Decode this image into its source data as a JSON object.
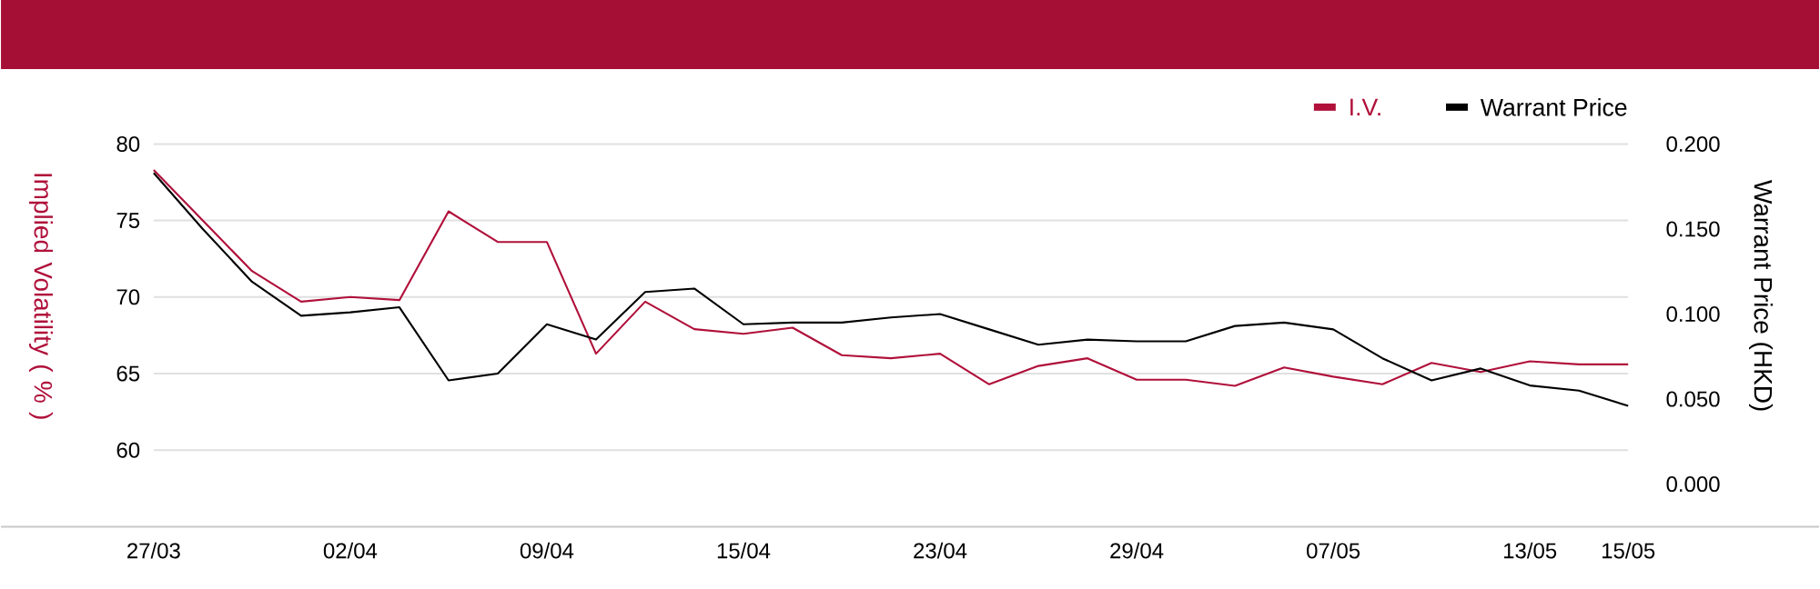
{
  "chart_data": {
    "type": "line",
    "ylabel": "Implied Volatility ( % )",
    "y2label": "Warrant Price (HKD)",
    "categories": [
      "27/03",
      null,
      null,
      null,
      "02/04",
      null,
      null,
      null,
      "09/04",
      null,
      null,
      null,
      "15/04",
      null,
      null,
      null,
      "23/04",
      null,
      null,
      null,
      "29/04",
      null,
      null,
      null,
      "07/05",
      null,
      null,
      null,
      "13/05",
      null,
      "15/05"
    ],
    "ylim": [
      55,
      80
    ],
    "yticks": [
      60,
      65,
      70,
      75,
      80
    ],
    "y2lim": [
      -0.025,
      0.2
    ],
    "y2ticks": [
      {
        "value": 0,
        "label": "0.000"
      },
      {
        "value": 0.05,
        "label": "0.050"
      },
      {
        "value": 0.1,
        "label": "0.100"
      },
      {
        "value": 0.15,
        "label": "0.150"
      },
      {
        "value": 0.2,
        "label": "0.200"
      }
    ],
    "grid": "y",
    "legend": "top right",
    "series": [
      {
        "name": "I.V.",
        "color": "#b0103a",
        "values": [
          78.3,
          75.0,
          71.7,
          69.7,
          70.0,
          69.8,
          75.6,
          73.6,
          73.6,
          66.3,
          69.7,
          67.9,
          67.6,
          68.0,
          66.2,
          66.0,
          66.3,
          64.3,
          65.5,
          66.0,
          64.6,
          64.6,
          64.2,
          65.4,
          64.8,
          64.3,
          65.7,
          65.1,
          65.8,
          65.6,
          65.6
        ]
      },
      {
        "name": "Warrant Price",
        "color": "#000000",
        "axis": "y2",
        "values": [
          0.183,
          0.15,
          0.119,
          0.099,
          0.101,
          0.104,
          0.061,
          0.065,
          0.094,
          0.085,
          0.113,
          0.115,
          0.094,
          0.095,
          0.095,
          0.098,
          0.1,
          0.091,
          0.082,
          0.085,
          0.084,
          0.084,
          0.093,
          0.095,
          0.091,
          0.074,
          0.061,
          0.068,
          0.058,
          0.055,
          0.046
        ]
      }
    ]
  }
}
